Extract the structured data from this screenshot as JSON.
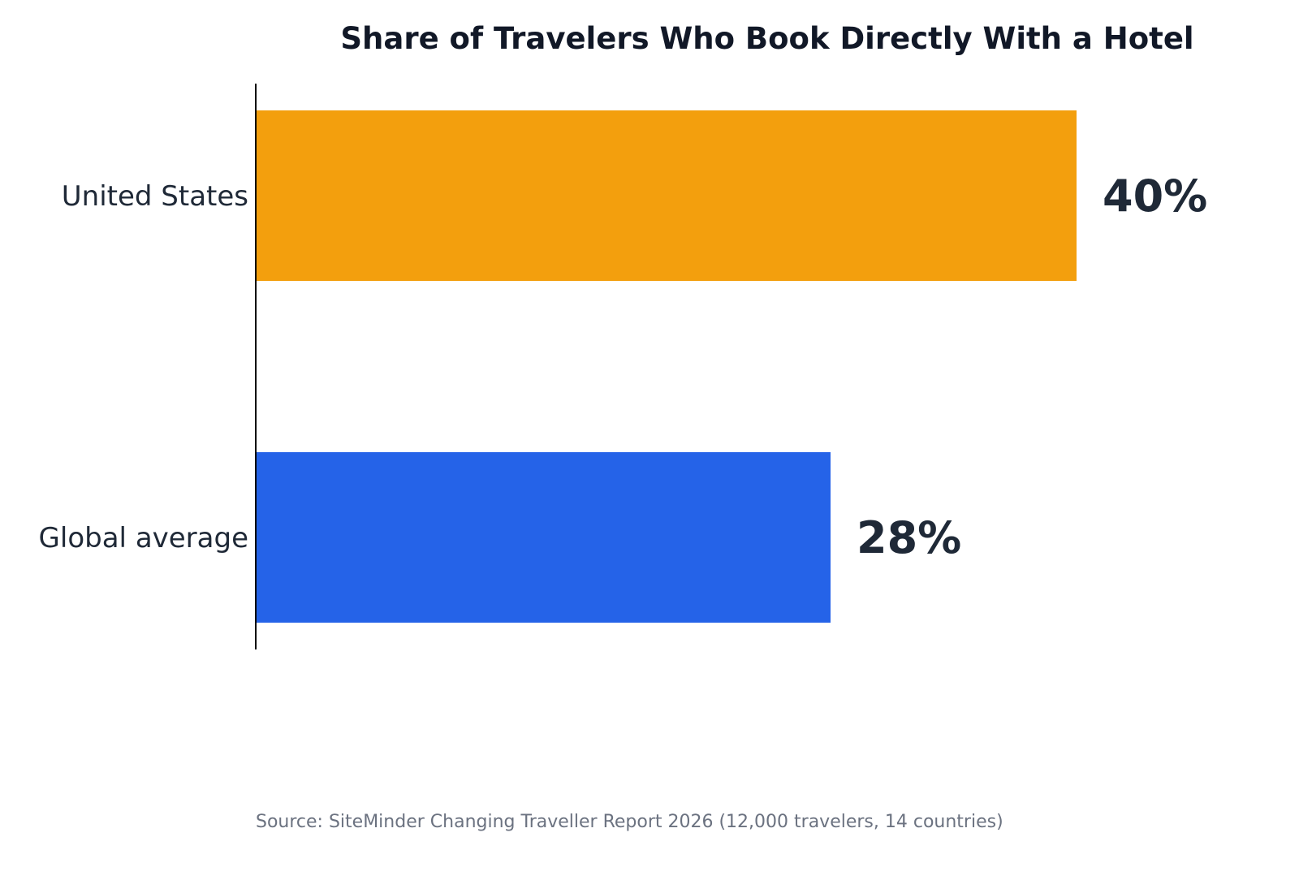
{
  "chart_data": {
    "type": "bar",
    "orientation": "horizontal",
    "title": "Share of Travelers Who Book Directly With a Hotel",
    "categories": [
      "United States",
      "Global average"
    ],
    "values": [
      40,
      28
    ],
    "value_labels": [
      "40%",
      "28%"
    ],
    "colors": [
      "#f39f0d",
      "#2563e8"
    ],
    "xlim": [
      0,
      40
    ],
    "grid": false,
    "source": "Source: SiteMinder Changing Traveller Report 2026 (12,000 travelers, 14 countries)"
  }
}
